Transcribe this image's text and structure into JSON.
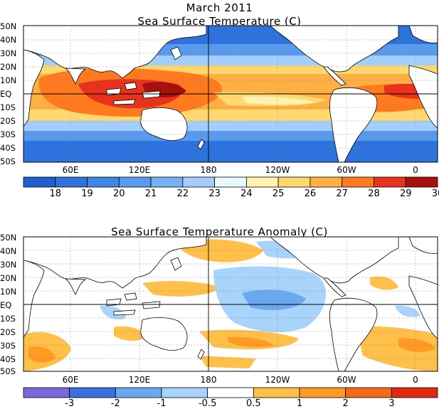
{
  "figure": {
    "main_title": "March 2011"
  },
  "panels": [
    {
      "id": "sst",
      "title": "Sea Surface Temperature (C)",
      "lat_labels": [
        "50N",
        "40N",
        "30N",
        "20N",
        "10N",
        "EQ",
        "10S",
        "20S",
        "30S",
        "40S",
        "50S"
      ],
      "lon_labels": [
        "60E",
        "120E",
        "180",
        "120W",
        "60W",
        "0"
      ],
      "colorbar": {
        "labels": [
          "18",
          "19",
          "20",
          "21",
          "22",
          "23",
          "24",
          "25",
          "26",
          "27",
          "28",
          "29",
          "30"
        ],
        "colors": [
          "#1f5fd0",
          "#2e73dd",
          "#3f86e6",
          "#5a9aee",
          "#78b0f4",
          "#a3cdfa",
          "#e9f8ff",
          "#fff2b0",
          "#ffd970",
          "#ffb044",
          "#ff7a1f",
          "#e8321c",
          "#a80f0f"
        ]
      }
    },
    {
      "id": "anom",
      "title": "Sea Surface Temperature Anomaly (C)",
      "lat_labels": [
        "50N",
        "40N",
        "30N",
        "20N",
        "10N",
        "EQ",
        "10S",
        "20S",
        "30S",
        "40S",
        "50S"
      ],
      "lon_labels": [
        "60E",
        "120E",
        "180",
        "120W",
        "60W",
        "0"
      ],
      "colorbar": {
        "labels": [
          "-3",
          "-2",
          "-1",
          "-0.5",
          "0.5",
          "1",
          "2",
          "3"
        ],
        "colors": [
          "#7b68dd",
          "#3b6fe0",
          "#6aa8f0",
          "#a8d4fb",
          "#ffffff",
          "#ffc04a",
          "#ff9a22",
          "#f26a1a",
          "#e02a10"
        ]
      }
    }
  ]
}
